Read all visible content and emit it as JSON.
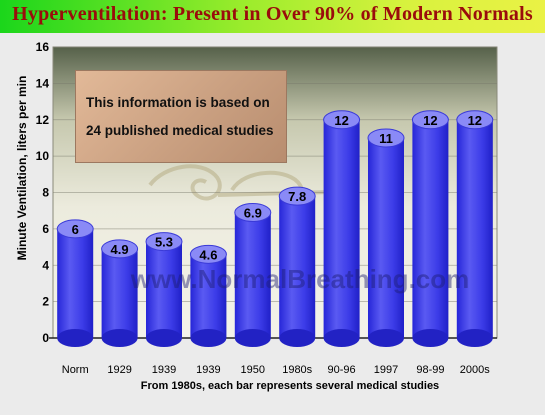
{
  "title": "Hyperventilation: Present in Over 90% of Modern Normals",
  "note": {
    "line1": "This information is based on",
    "line2": "24 published medical studies"
  },
  "watermark": "www.NormalBreathing.com",
  "colors": {
    "bar": "#3a3aee",
    "bar_top": "#8080f6",
    "title": "#9a0c0c",
    "title_bar_start": "#1bd61b",
    "title_bar_end": "#eaf245"
  },
  "chart_data": {
    "type": "bar",
    "categories": [
      "Norm",
      "1929",
      "1939",
      "1939",
      "1950",
      "1980s",
      "90-96",
      "1997",
      "98-99",
      "2000s"
    ],
    "values": [
      6,
      4.9,
      5.3,
      4.6,
      6.9,
      7.8,
      12,
      11,
      12,
      12
    ],
    "value_labels": [
      "6",
      "4.9",
      "5.3",
      "4.6",
      "6.9",
      "7.8",
      "12",
      "11",
      "12",
      "12"
    ],
    "ylabel": "Minute Ventilation, liters per min",
    "xlabel": "From 1980s, each bar represents several medical studies",
    "ylim": [
      0,
      16
    ],
    "yticks": [
      0,
      2,
      4,
      6,
      8,
      10,
      12,
      14,
      16
    ],
    "grid": true
  }
}
